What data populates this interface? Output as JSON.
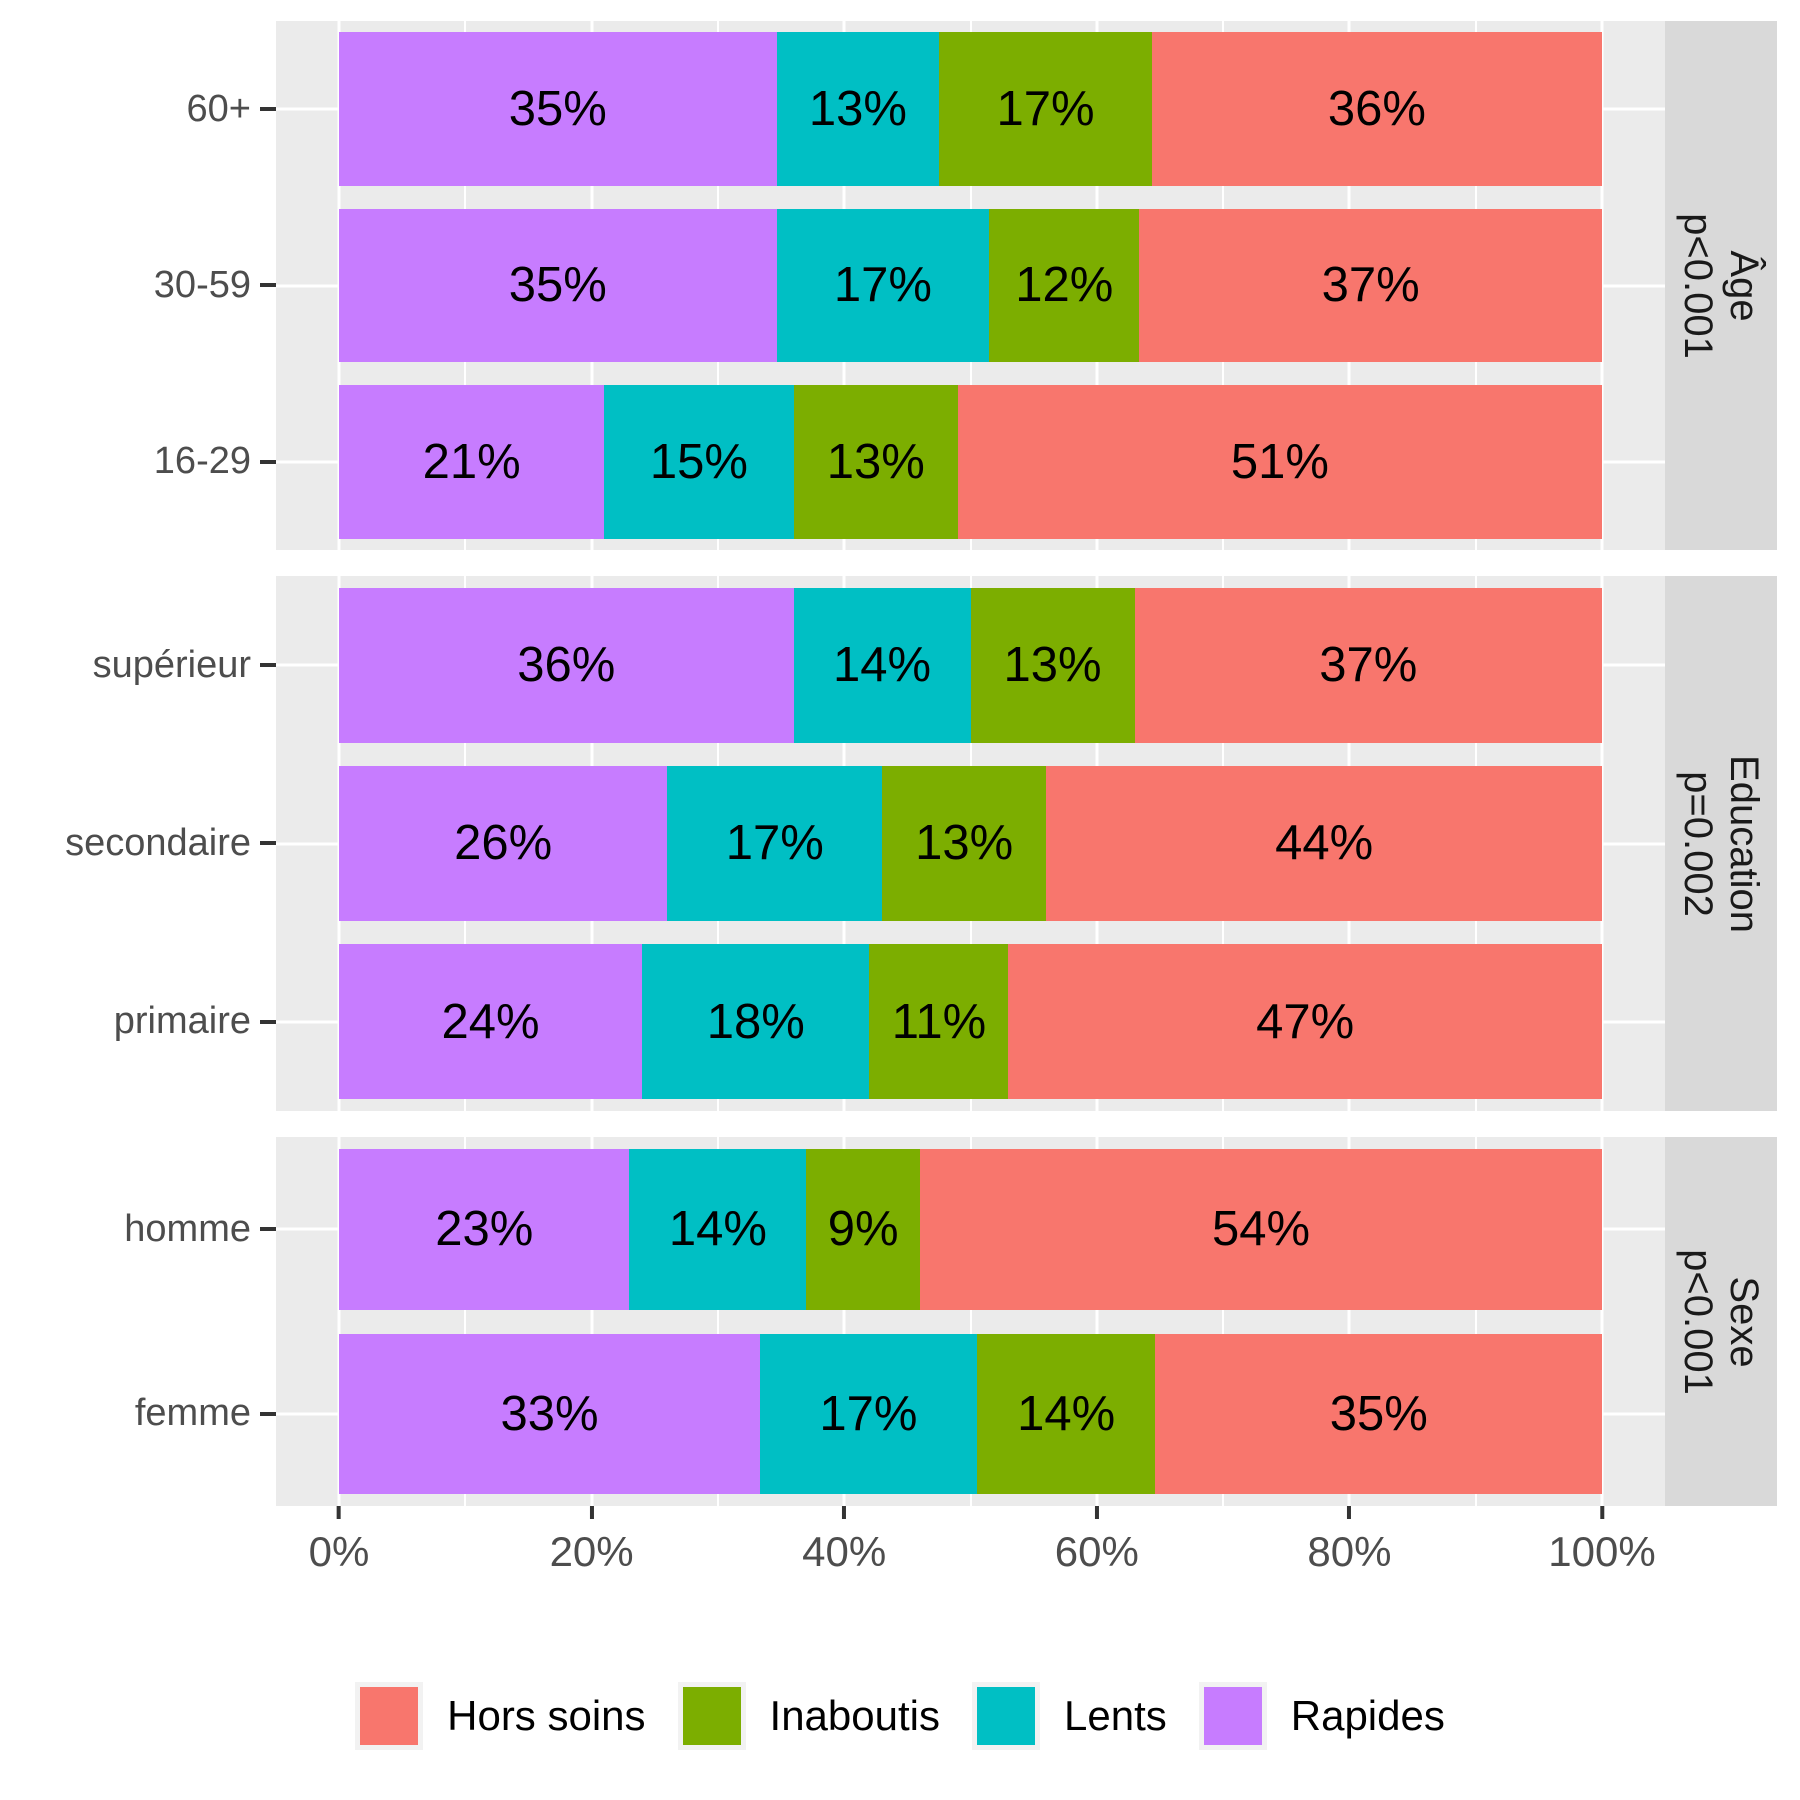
{
  "colors": {
    "series": {
      "Hors soins": "#F8766D",
      "Inaboutis": "#7CAE00",
      "Lents": "#00BFC4",
      "Rapides": "#C77CFF"
    },
    "panel_bg": "#EBEBEB",
    "strip_bg": "#D9D9D9",
    "gridline": "#FFFFFF",
    "axis_text": "#4D4D4D",
    "strip_text": "#1A1A1A",
    "tick_mark": "#333333",
    "bar_label": "#000000"
  },
  "chart_data": {
    "type": "bar",
    "orientation": "horizontal",
    "stacked": true,
    "unit": "percent",
    "xlim": [
      0,
      100
    ],
    "grid": "on",
    "legend_position": "bottom",
    "stack_order_left_to_right": [
      "Rapides",
      "Lents",
      "Inaboutis",
      "Hors soins"
    ],
    "facets": [
      {
        "strip": {
          "title": "Âge",
          "pvalue": "p<0.001"
        },
        "rows": [
          {
            "category": "60+",
            "segments": [
              {
                "series": "Rapides",
                "value": 35,
                "label": "35%"
              },
              {
                "series": "Lents",
                "value": 13,
                "label": "13%"
              },
              {
                "series": "Inaboutis",
                "value": 17,
                "label": "17%"
              },
              {
                "series": "Hors soins",
                "value": 36,
                "label": "36%"
              }
            ]
          },
          {
            "category": "30-59",
            "segments": [
              {
                "series": "Rapides",
                "value": 35,
                "label": "35%"
              },
              {
                "series": "Lents",
                "value": 17,
                "label": "17%"
              },
              {
                "series": "Inaboutis",
                "value": 12,
                "label": "12%"
              },
              {
                "series": "Hors soins",
                "value": 37,
                "label": "37%"
              }
            ]
          },
          {
            "category": "16-29",
            "segments": [
              {
                "series": "Rapides",
                "value": 21,
                "label": "21%"
              },
              {
                "series": "Lents",
                "value": 15,
                "label": "15%"
              },
              {
                "series": "Inaboutis",
                "value": 13,
                "label": "13%"
              },
              {
                "series": "Hors soins",
                "value": 51,
                "label": "51%"
              }
            ]
          }
        ]
      },
      {
        "strip": {
          "title": "Education",
          "pvalue": "p=0.002"
        },
        "rows": [
          {
            "category": "supérieur",
            "segments": [
              {
                "series": "Rapides",
                "value": 36,
                "label": "36%"
              },
              {
                "series": "Lents",
                "value": 14,
                "label": "14%"
              },
              {
                "series": "Inaboutis",
                "value": 13,
                "label": "13%"
              },
              {
                "series": "Hors soins",
                "value": 37,
                "label": "37%"
              }
            ]
          },
          {
            "category": "secondaire",
            "segments": [
              {
                "series": "Rapides",
                "value": 26,
                "label": "26%"
              },
              {
                "series": "Lents",
                "value": 17,
                "label": "17%"
              },
              {
                "series": "Inaboutis",
                "value": 13,
                "label": "13%"
              },
              {
                "series": "Hors soins",
                "value": 44,
                "label": "44%"
              }
            ]
          },
          {
            "category": "primaire",
            "segments": [
              {
                "series": "Rapides",
                "value": 24,
                "label": "24%"
              },
              {
                "series": "Lents",
                "value": 18,
                "label": "18%"
              },
              {
                "series": "Inaboutis",
                "value": 11,
                "label": "11%"
              },
              {
                "series": "Hors soins",
                "value": 47,
                "label": "47%"
              }
            ]
          }
        ]
      },
      {
        "strip": {
          "title": "Sexe",
          "pvalue": "p<0.001"
        },
        "rows": [
          {
            "category": "homme",
            "segments": [
              {
                "series": "Rapides",
                "value": 23,
                "label": "23%"
              },
              {
                "series": "Lents",
                "value": 14,
                "label": "14%"
              },
              {
                "series": "Inaboutis",
                "value": 9,
                "label": "9%"
              },
              {
                "series": "Hors soins",
                "value": 54,
                "label": "54%"
              }
            ]
          },
          {
            "category": "femme",
            "segments": [
              {
                "series": "Rapides",
                "value": 33,
                "label": "33%"
              },
              {
                "series": "Lents",
                "value": 17,
                "label": "17%"
              },
              {
                "series": "Inaboutis",
                "value": 14,
                "label": "14%"
              },
              {
                "series": "Hors soins",
                "value": 35,
                "label": "35%"
              }
            ]
          }
        ]
      }
    ],
    "x_axis": {
      "ticks": [
        {
          "value": 0,
          "label": "0%"
        },
        {
          "value": 20,
          "label": "20%"
        },
        {
          "value": 40,
          "label": "40%"
        },
        {
          "value": 60,
          "label": "60%"
        },
        {
          "value": 80,
          "label": "80%"
        },
        {
          "value": 100,
          "label": "100%"
        }
      ],
      "minor_step": 10
    },
    "legend": {
      "items": [
        {
          "label": "Hors soins",
          "series": "Hors soins"
        },
        {
          "label": "Inaboutis",
          "series": "Inaboutis"
        },
        {
          "label": "Lents",
          "series": "Lents"
        },
        {
          "label": "Rapides",
          "series": "Rapides"
        }
      ]
    }
  }
}
